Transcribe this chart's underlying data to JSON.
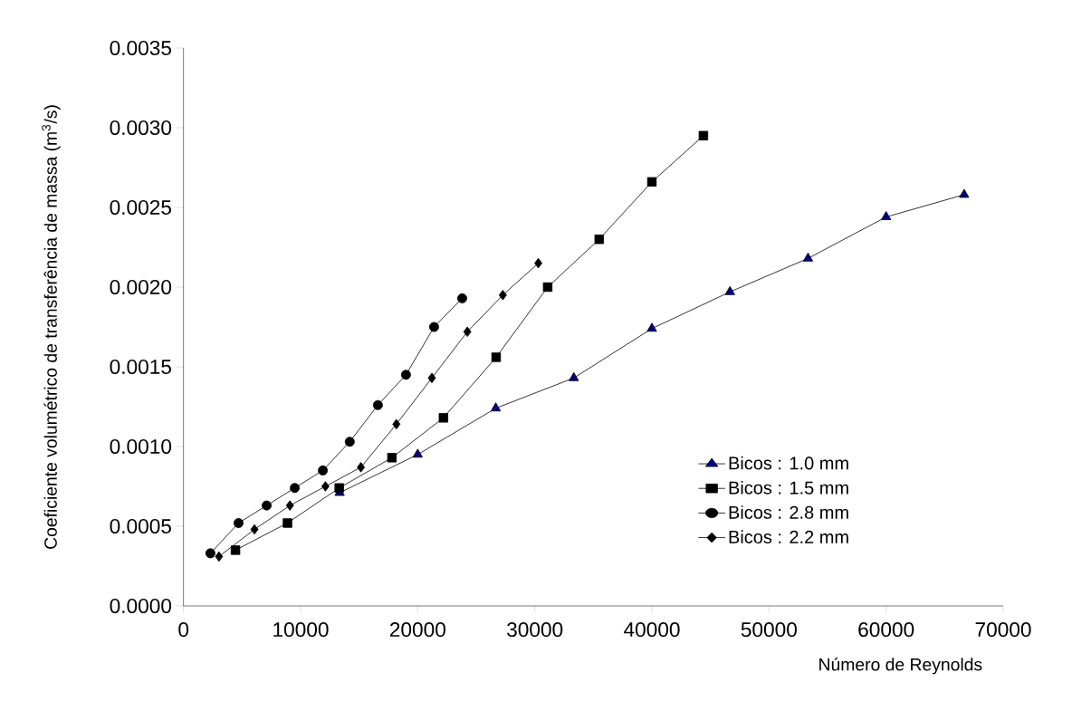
{
  "chart_data": {
    "type": "line",
    "xlabel": "Número de Reynolds",
    "ylabel": "Coeficiente volumétrico de transferência de massa (m$^{3}$/s)",
    "xlim": [
      0,
      70000
    ],
    "xticks": [
      0,
      10000,
      20000,
      30000,
      40000,
      50000,
      60000,
      70000
    ],
    "ylim": [
      0,
      0.0035
    ],
    "yticks": [
      {
        "value": 0,
        "label": "0.0000"
      },
      {
        "value": 0.0005,
        "label": "0.0005"
      },
      {
        "value": 0.001,
        "label": "0.0010"
      },
      {
        "value": 0.0015,
        "label": "0.0015"
      },
      {
        "value": 0.002,
        "label": "0.0020"
      },
      {
        "value": 0.0025,
        "label": "0.0025"
      },
      {
        "value": 0.003,
        "label": "0.0030"
      },
      {
        "value": 0.0035,
        "label": "0.0035"
      }
    ],
    "legend": "bottom right",
    "line_style": "solid",
    "series": [
      {
        "name": "Bicos : 1.0 mm",
        "color": "#000080",
        "marker": "triangle",
        "x": [
          13333,
          20000,
          26667,
          33333,
          40000,
          46667,
          53333,
          60000,
          66667
        ],
        "values": [
          0.00071,
          0.00095,
          0.00124,
          0.00143,
          0.00174,
          0.00197,
          0.00218,
          0.00244,
          0.00258
        ]
      },
      {
        "name": "Bicos : 1.5 mm",
        "color": "#000000",
        "marker": "square",
        "x": [
          4440,
          8880,
          13300,
          17800,
          22200,
          26700,
          31100,
          35500,
          40000,
          44400
        ],
        "values": [
          0.00035,
          0.00052,
          0.00074,
          0.00093,
          0.00118,
          0.00156,
          0.002,
          0.0023,
          0.00266,
          0.00295
        ]
      },
      {
        "name": "Bicos : 2.8 mm",
        "color": "#000000",
        "marker": "circle",
        "x": [
          2300,
          4700,
          7100,
          9500,
          11900,
          14200,
          16600,
          19000,
          21400,
          23800
        ],
        "values": [
          0.00033,
          0.00052,
          0.00063,
          0.00074,
          0.00085,
          0.00103,
          0.00126,
          0.00145,
          0.00175,
          0.00193
        ]
      },
      {
        "name": "Bicos : 2.2 mm",
        "color": "#000000",
        "marker": "diamond",
        "x": [
          3030,
          6060,
          9090,
          12120,
          15150,
          18180,
          21210,
          24240,
          27270,
          30300
        ],
        "values": [
          0.00031,
          0.00048,
          0.00063,
          0.00075,
          0.00087,
          0.00114,
          0.00143,
          0.00172,
          0.00195,
          0.00215
        ]
      }
    ]
  }
}
